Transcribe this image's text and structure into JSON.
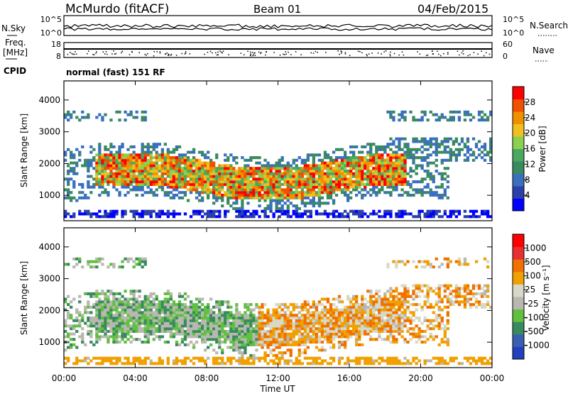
{
  "header": {
    "station": "McMurdo (fitACF)",
    "beam": "Beam 01",
    "date": "04/Feb/2015"
  },
  "strip": {
    "nsky_label": "N.Sky",
    "nsky_ticks": [
      "10^5",
      "10^0"
    ],
    "nsearch_label": "N.Search",
    "nsearch_ticks": [
      "10^5",
      "10^0"
    ],
    "freq_label": "Freq.",
    "freq_unit": "[MHz]",
    "freq_ticks": [
      "18",
      "8"
    ],
    "nave_label": "Nave",
    "nave_ticks": [
      "60",
      "0"
    ],
    "cpid_label": "CPID",
    "cpid_value": "normal (fast) 151 RF"
  },
  "colors": {
    "power_scale": [
      "#0000ff",
      "#2a3fa8",
      "#3a6fc0",
      "#3a8a60",
      "#4aa860",
      "#8cd050",
      "#f0c020",
      "#f09000",
      "#f05000",
      "#ff0000"
    ],
    "velocity_scale": [
      "#2040c0",
      "#3a5fb0",
      "#3a8a60",
      "#60c040",
      "#b8b8b0",
      "#d8d8c8",
      "#f0a000",
      "#f07000",
      "#e83030",
      "#ff0000"
    ]
  },
  "chart_data": [
    {
      "type": "heatmap",
      "name": "power",
      "ylabel": "Slant Range [km]",
      "yticks": [
        1000,
        2000,
        3000,
        4000
      ],
      "ylim": [
        200,
        4600
      ],
      "colorbar_label": "Power [dB]",
      "colorbar_ticks": [
        "4",
        "8",
        "12",
        "16",
        "20",
        "24",
        "28"
      ],
      "colorbar_range": [
        0,
        30
      ]
    },
    {
      "type": "heatmap",
      "name": "velocity",
      "ylabel": "Slant Range [km]",
      "yticks": [
        1000,
        2000,
        3000,
        4000
      ],
      "ylim": [
        200,
        4600
      ],
      "colorbar_label": "Velocity [m s⁻¹]",
      "colorbar_ticks": [
        "1000",
        "500",
        "100",
        "25",
        "-25",
        "-100",
        "-500",
        "-1000"
      ]
    }
  ],
  "xaxis": {
    "label": "Time UT",
    "ticks": [
      "00:00",
      "04:00",
      "08:00",
      "12:00",
      "16:00",
      "20:00",
      "00:00"
    ]
  }
}
